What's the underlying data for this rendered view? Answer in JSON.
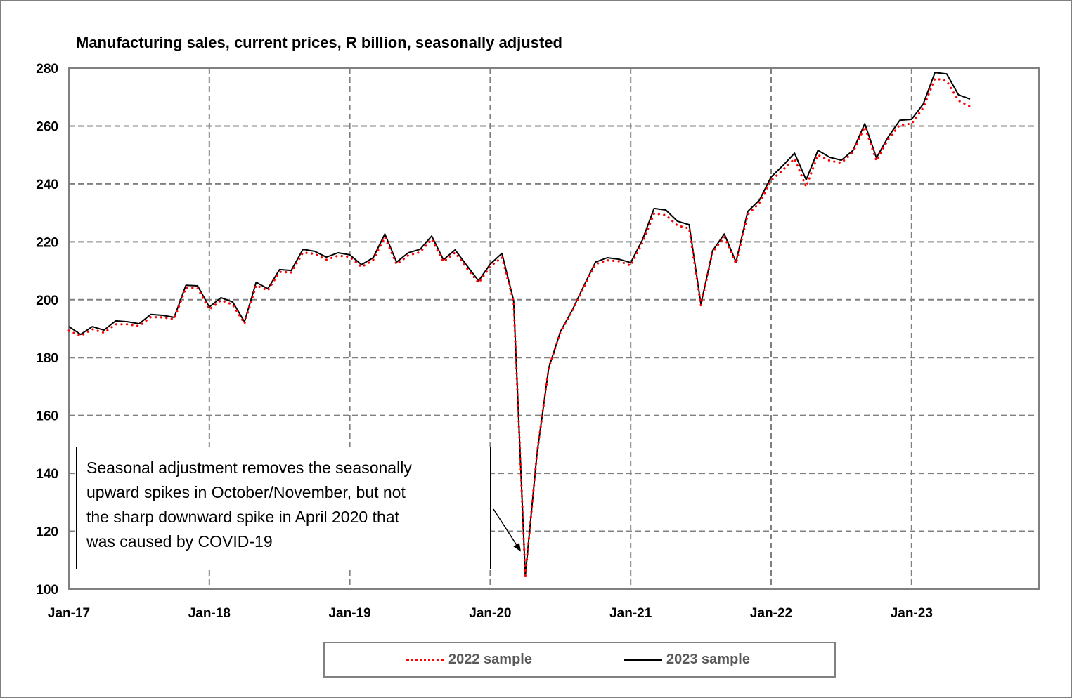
{
  "chart_data": {
    "type": "line",
    "title": "Manufacturing sales, current prices, R billion, seasonally adjusted",
    "xlabel": "",
    "ylabel": "",
    "ylim": [
      100,
      280
    ],
    "yticks": [
      "100",
      "120",
      "140",
      "160",
      "180",
      "200",
      "220",
      "240",
      "260",
      "280"
    ],
    "xticks": [
      "Jan-17",
      "Jan-18",
      "Jan-19",
      "Jan-20",
      "Jan-21",
      "Jan-22",
      "Jan-23"
    ],
    "x_range_months": [
      0,
      83
    ],
    "grid": true,
    "legend_position": "bottom",
    "colors": {
      "series_2022": "#ff0000",
      "series_2023": "#000000",
      "grid": "#808080",
      "axis": "#808080"
    },
    "series": [
      {
        "name": "2022 sample",
        "style": "dotted",
        "values": [
          189.3,
          187.5,
          189.8,
          188.6,
          191.5,
          191.5,
          190.9,
          194.0,
          193.9,
          193.3,
          204.2,
          204.0,
          196.6,
          199.8,
          198.3,
          191.8,
          205.0,
          203.2,
          209.6,
          209.4,
          216.3,
          215.8,
          213.8,
          215.2,
          214.8,
          211.3,
          213.7,
          221.6,
          212.2,
          215.3,
          216.4,
          220.9,
          213.1,
          216.3,
          210.9,
          205.8,
          211.5,
          214.6,
          199.2,
          104.6,
          147.0,
          176.4,
          188.8,
          196.0,
          204.2,
          212.3,
          213.6,
          213.3,
          211.8,
          219.6,
          229.8,
          229.2,
          225.6,
          224.6,
          198.0,
          216.4,
          221.7,
          212.5,
          229.4,
          233.4,
          241.2,
          244.8,
          248.7,
          239.0,
          250.0,
          248.0,
          247.3,
          250.9,
          259.8,
          248.0,
          255.4,
          260.4,
          260.8,
          266.3,
          276.4,
          275.6,
          268.8,
          266.7
        ]
      },
      {
        "name": "2023 sample",
        "style": "solid",
        "values": [
          190.7,
          188.0,
          190.7,
          189.5,
          192.7,
          192.4,
          191.7,
          194.9,
          194.6,
          193.9,
          205.0,
          204.8,
          197.5,
          200.7,
          199.2,
          192.4,
          206.0,
          203.8,
          210.4,
          210.1,
          217.4,
          216.7,
          214.7,
          216.2,
          215.5,
          212.1,
          214.5,
          222.7,
          213.0,
          216.2,
          217.4,
          222.0,
          213.8,
          217.2,
          211.8,
          206.5,
          212.3,
          216.0,
          199.7,
          104.6,
          147.0,
          176.4,
          189.0,
          196.3,
          204.8,
          213.0,
          214.5,
          214.0,
          212.8,
          220.6,
          231.5,
          231.0,
          227.1,
          225.9,
          198.5,
          216.9,
          222.7,
          213.0,
          230.5,
          234.4,
          242.4,
          246.3,
          250.6,
          241.4,
          251.6,
          249.2,
          248.2,
          251.6,
          260.8,
          249.0,
          256.2,
          262.0,
          262.3,
          267.6,
          278.5,
          278.0,
          270.8,
          269.3
        ]
      }
    ],
    "annotation": {
      "lines": [
        "Seasonal adjustment removes the seasonally",
        "upward spikes in October/November,  but not",
        "the sharp downward spike in April 2020 that",
        "was caused by COVID-19"
      ],
      "points_to": "Apr-20"
    }
  }
}
